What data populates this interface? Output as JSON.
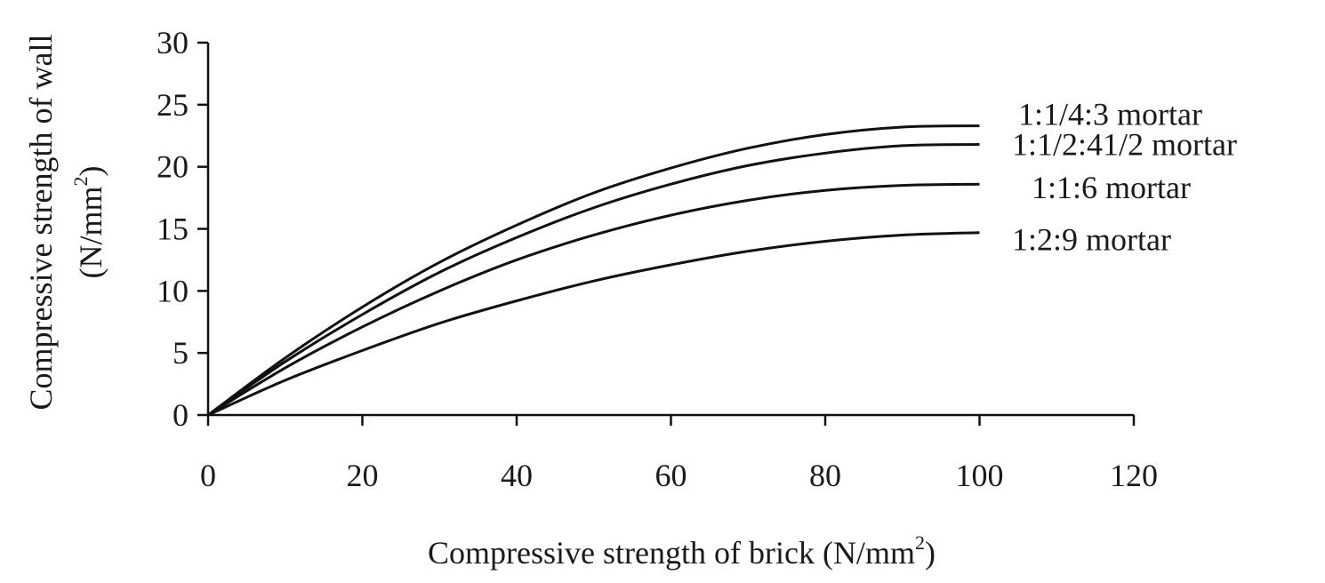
{
  "chart_data": {
    "type": "line",
    "xlabel": "Compressive strength of brick (N/mm",
    "xlabel_sup": "2",
    "xlabel_end": ")",
    "ylabel_line1": "Compressive strength of wall",
    "ylabel_line2": "(N/mm",
    "ylabel_sup": "2",
    "ylabel_end": ")",
    "xlim": [
      0,
      120
    ],
    "ylim": [
      0,
      30
    ],
    "xticks": [
      0,
      20,
      40,
      60,
      80,
      100,
      120
    ],
    "yticks": [
      0,
      5,
      10,
      15,
      20,
      25,
      30
    ],
    "grid": false,
    "legend": "inline-right",
    "x": [
      0,
      10,
      20,
      30,
      40,
      50,
      60,
      70,
      80,
      90,
      100
    ],
    "series": [
      {
        "name": "1:1/4:3 mortar",
        "values": [
          0,
          4.6,
          8.7,
          12.3,
          15.3,
          17.9,
          19.9,
          21.5,
          22.6,
          23.2,
          23.3
        ]
      },
      {
        "name": "1:1/2:41/2 mortar",
        "values": [
          0,
          4.3,
          8.1,
          11.5,
          14.3,
          16.7,
          18.6,
          20.1,
          21.1,
          21.7,
          21.8
        ]
      },
      {
        "name": "1:1:6 mortar",
        "values": [
          0,
          3.8,
          7.1,
          10.0,
          12.5,
          14.5,
          16.1,
          17.3,
          18.1,
          18.5,
          18.6
        ]
      },
      {
        "name": "1:2:9 mortar",
        "values": [
          0,
          2.8,
          5.2,
          7.4,
          9.2,
          10.8,
          12.1,
          13.2,
          14.0,
          14.5,
          14.7
        ]
      }
    ]
  }
}
